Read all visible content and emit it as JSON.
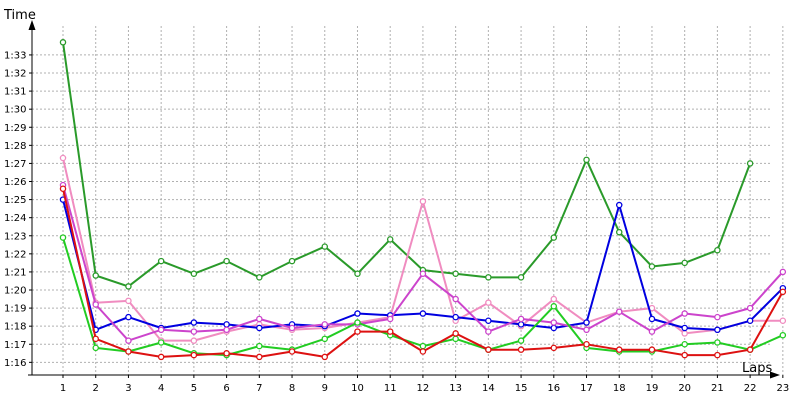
{
  "chart_data": {
    "type": "line",
    "title": "",
    "xlabel": "Laps",
    "ylabel": "Time",
    "x": [
      1,
      2,
      3,
      4,
      5,
      6,
      7,
      8,
      9,
      10,
      11,
      12,
      13,
      14,
      15,
      16,
      17,
      18,
      19,
      20,
      21,
      22,
      23
    ],
    "y_tick_labels": [
      "1:16",
      "1:17",
      "1:18",
      "1:19",
      "1:20",
      "1:21",
      "1:22",
      "1:23",
      "1:24",
      "1:25",
      "1:26",
      "1:27",
      "1:28",
      "1:29",
      "1:30",
      "1:31",
      "1:32",
      "1:33"
    ],
    "y_tick_values": [
      76,
      77,
      78,
      79,
      80,
      81,
      82,
      83,
      84,
      85,
      86,
      87,
      88,
      89,
      90,
      91,
      92,
      93
    ],
    "ylim": [
      75.3,
      94.6
    ],
    "xlim": [
      0.5,
      23.2
    ],
    "grid": "horizontal dashed",
    "legend": "none",
    "series": [
      {
        "color": "#2a9a2a",
        "values": [
          93.7,
          80.8,
          80.2,
          81.6,
          80.9,
          81.6,
          80.7,
          81.6,
          82.4,
          80.9,
          82.8,
          81.1,
          80.9,
          80.7,
          80.7,
          82.9,
          87.2,
          83.2,
          81.3,
          81.5,
          82.2,
          87.0,
          null
        ]
      },
      {
        "color": "#f08cc0",
        "values": [
          87.3,
          79.3,
          79.4,
          77.2,
          77.2,
          77.7,
          78.1,
          77.8,
          77.9,
          78.2,
          78.5,
          84.9,
          78.3,
          79.3,
          78.0,
          79.5,
          78.2,
          78.8,
          79.0,
          77.6,
          77.8,
          78.3,
          78.3
        ]
      },
      {
        "color": "#0000e0",
        "values": [
          85.0,
          77.8,
          78.5,
          77.9,
          78.2,
          78.1,
          77.9,
          78.1,
          78.0,
          78.7,
          78.6,
          78.7,
          78.5,
          78.3,
          78.1,
          77.9,
          78.2,
          84.7,
          78.4,
          77.9,
          77.8,
          78.3,
          80.1
        ]
      },
      {
        "color": "#cc44cc",
        "values": [
          85.8,
          79.2,
          77.2,
          77.8,
          77.7,
          77.8,
          78.4,
          77.9,
          78.1,
          78.1,
          78.4,
          80.9,
          79.5,
          77.7,
          78.4,
          78.2,
          77.8,
          78.8,
          77.7,
          78.7,
          78.5,
          79.0,
          81.0
        ]
      },
      {
        "color": "#22cc22",
        "values": [
          82.9,
          76.8,
          76.6,
          77.1,
          76.5,
          76.4,
          76.9,
          76.7,
          77.3,
          78.2,
          77.5,
          76.9,
          77.3,
          76.7,
          77.2,
          79.1,
          76.8,
          76.6,
          76.6,
          77.0,
          77.1,
          76.7,
          77.5
        ]
      },
      {
        "color": "#dd1111",
        "values": [
          85.6,
          77.3,
          76.6,
          76.3,
          76.4,
          76.5,
          76.3,
          76.6,
          76.3,
          77.7,
          77.7,
          76.6,
          77.6,
          76.7,
          76.7,
          76.8,
          77.0,
          76.7,
          76.7,
          76.4,
          76.4,
          76.7,
          79.9
        ]
      }
    ]
  }
}
